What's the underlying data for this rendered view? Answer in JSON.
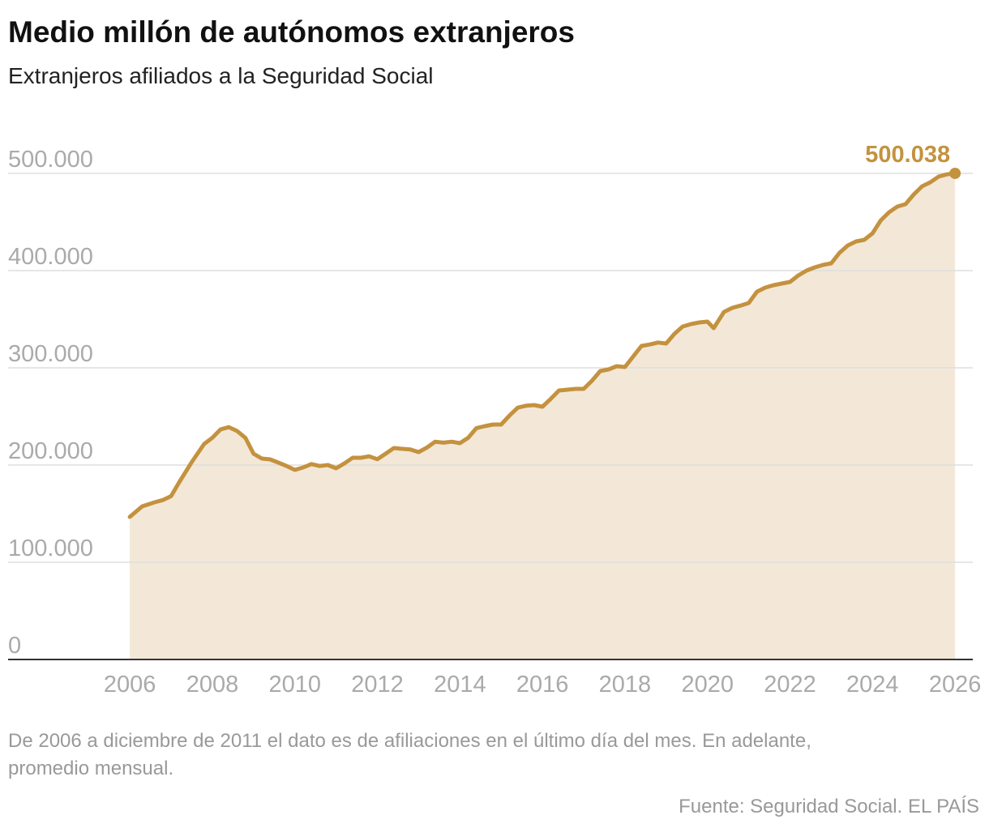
{
  "chart_data": {
    "type": "area",
    "title": "Medio millón de autónomos extranjeros",
    "subtitle": "Extranjeros afiliados a la Seguridad Social",
    "note": "De 2006 a diciembre de 2011 el dato es de afiliaciones en el último día del mes. En adelante, promedio mensual.",
    "source": "Fuente: Seguridad Social. EL PAÍS",
    "x": [
      2006.0,
      2006.3,
      2006.6,
      2006.8,
      2007.0,
      2007.2,
      2007.5,
      2007.8,
      2008.0,
      2008.2,
      2008.4,
      2008.6,
      2008.8,
      2009.0,
      2009.2,
      2009.4,
      2009.6,
      2009.8,
      2010.0,
      2010.2,
      2010.4,
      2010.6,
      2010.8,
      2011.0,
      2011.2,
      2011.4,
      2011.6,
      2011.8,
      2012.0,
      2012.2,
      2012.4,
      2012.6,
      2012.8,
      2013.0,
      2013.2,
      2013.4,
      2013.6,
      2013.8,
      2014.0,
      2014.2,
      2014.4,
      2014.6,
      2014.8,
      2015.0,
      2015.2,
      2015.4,
      2015.6,
      2015.8,
      2016.0,
      2016.2,
      2016.4,
      2016.6,
      2016.8,
      2017.0,
      2017.2,
      2017.4,
      2017.6,
      2017.8,
      2018.0,
      2018.2,
      2018.4,
      2018.6,
      2018.8,
      2019.0,
      2019.2,
      2019.4,
      2019.6,
      2019.8,
      2020.0,
      2020.15,
      2020.4,
      2020.6,
      2020.8,
      2021.0,
      2021.2,
      2021.4,
      2021.6,
      2021.8,
      2022.0,
      2022.2,
      2022.4,
      2022.6,
      2022.8,
      2023.0,
      2023.2,
      2023.4,
      2023.6,
      2023.8,
      2024.0,
      2024.2,
      2024.4,
      2024.6,
      2024.8,
      2025.0,
      2025.2,
      2025.4,
      2025.6,
      2025.8,
      2026.0
    ],
    "series": [
      {
        "color": "#c4923f",
        "fill": "#f3e8d8",
        "values": [
          146700,
          157500,
          161700,
          164000,
          168000,
          182500,
          203000,
          221700,
          228000,
          236700,
          239000,
          235000,
          228000,
          211700,
          206700,
          205800,
          202500,
          199000,
          195000,
          197500,
          201000,
          199000,
          200000,
          196700,
          201700,
          207500,
          207500,
          209000,
          206000,
          211700,
          217500,
          216700,
          216000,
          213300,
          218000,
          224000,
          223000,
          224000,
          222500,
          228000,
          238000,
          240000,
          241700,
          241700,
          250800,
          259000,
          261000,
          261700,
          260000,
          268000,
          276700,
          277500,
          278300,
          278300,
          286700,
          296700,
          298300,
          301700,
          300800,
          311700,
          322500,
          324000,
          326000,
          325000,
          335000,
          342500,
          345000,
          346700,
          347500,
          340800,
          357500,
          361700,
          364000,
          366700,
          378300,
          382500,
          385000,
          386700,
          388300,
          395000,
          400000,
          403300,
          405800,
          407500,
          418300,
          425800,
          430000,
          431700,
          438300,
          451700,
          460000,
          465800,
          468300,
          478300,
          486700,
          490800,
          496700,
          499000,
          500038
        ],
        "value_labels": [
          null,
          null,
          null,
          null,
          null,
          null,
          null,
          null,
          null,
          null,
          null,
          null,
          null,
          null,
          null,
          null,
          null,
          null,
          null,
          null,
          null,
          null,
          null,
          null,
          null,
          null,
          null,
          null,
          null,
          null,
          null,
          null,
          null,
          null,
          null,
          null,
          null,
          null,
          null,
          null,
          null,
          null,
          null,
          null,
          null,
          null,
          null,
          null,
          null,
          null,
          null,
          null,
          null,
          null,
          null,
          null,
          null,
          null,
          null,
          null,
          null,
          null,
          null,
          null,
          null,
          null,
          null,
          null,
          null,
          null,
          null,
          null,
          null,
          null,
          null,
          null,
          null,
          null,
          null,
          null,
          null,
          null,
          null,
          null,
          null,
          null,
          null,
          null,
          null,
          null,
          null,
          null,
          null,
          null,
          null,
          null,
          null,
          null,
          "500.038"
        ]
      }
    ],
    "xlim": [
      2003.05,
      2026.43
    ],
    "xticks": [
      2006,
      2008,
      2010,
      2012,
      2014,
      2016,
      2018,
      2020,
      2022,
      2024,
      2026
    ],
    "ylim": [
      0,
      500000
    ],
    "yticks": [
      0,
      {
        "value": 100000,
        "label": "100.000"
      },
      {
        "value": 200000,
        "label": "200.000"
      },
      {
        "value": 300000,
        "label": "300.000"
      },
      {
        "value": 400000,
        "label": "400.000"
      },
      {
        "value": 500000,
        "label": "500.000"
      }
    ],
    "grid": true
  }
}
